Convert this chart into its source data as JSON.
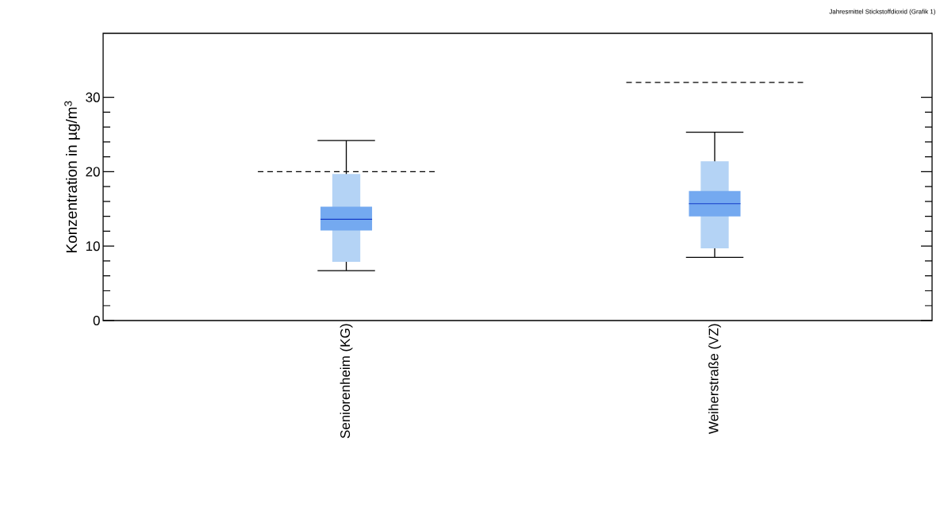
{
  "chart_data": {
    "type": "box",
    "ylabel": "Konzentration in µg/m$^{3}$",
    "annotations": [
      "Jahresmittel Stickstoffdioxid (Grafik 1)"
    ],
    "categories": [
      "Seniorenheim (KG)",
      "Weiherstraße (VZ)"
    ],
    "ylim": [
      0,
      38.6
    ],
    "yticks": [
      0,
      10,
      20,
      30
    ],
    "series": [
      {
        "type": "bar",
        "color": "#b4d3f5",
        "base": [
          7.9,
          9.7
        ],
        "values": [
          11.8,
          11.7
        ]
      },
      {
        "type": "box",
        "color": "#74a9f0",
        "boxes": [
          {
            "low": 6.7,
            "q1": 12.1,
            "median": 13.6,
            "q3": 15.3,
            "high": 24.2
          },
          {
            "low": 8.5,
            "q1": 14.0,
            "median": 15.7,
            "q3": 17.4,
            "high": 25.3
          }
        ]
      }
    ],
    "ref_lines": [
      {
        "axis": "y",
        "value": 20,
        "line_style": "dashed"
      },
      {
        "axis": "y",
        "value": 32,
        "line_style": "dashed"
      }
    ]
  }
}
